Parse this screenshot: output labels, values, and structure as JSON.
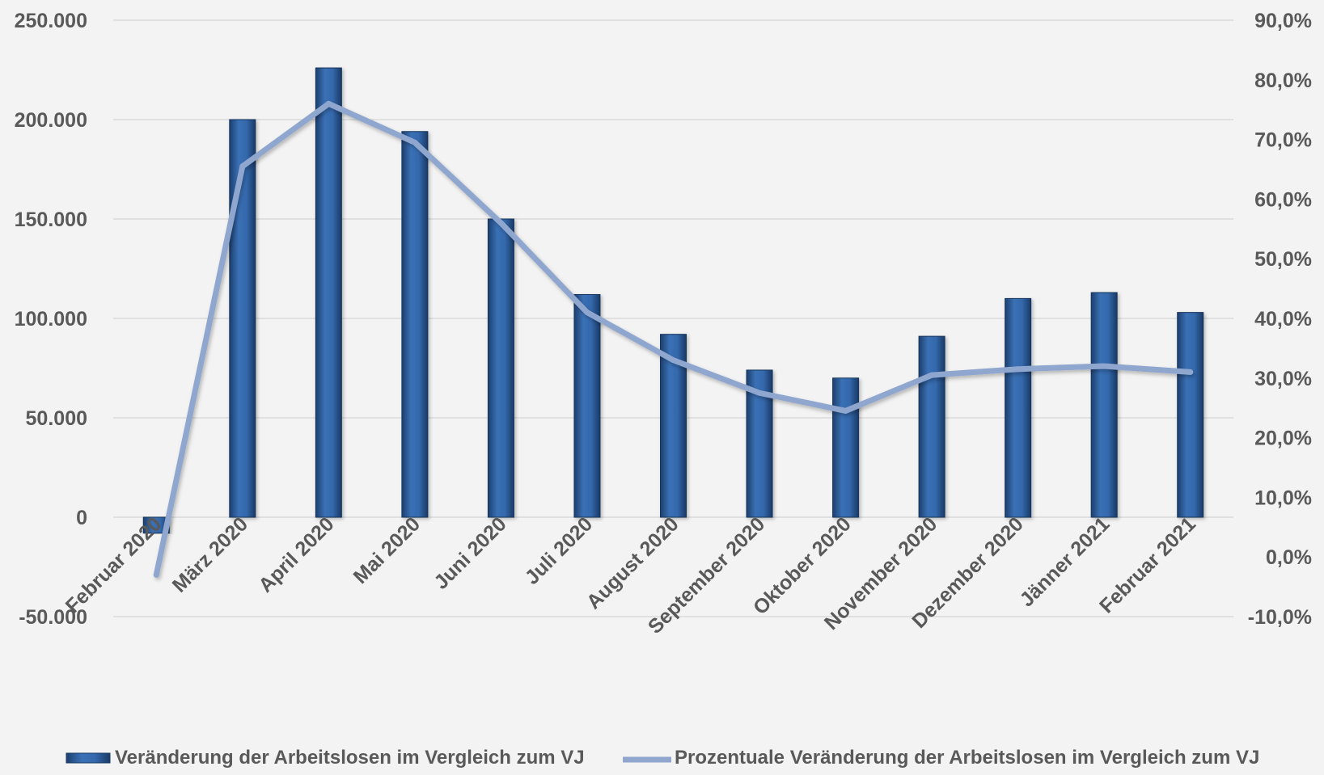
{
  "chart_data": {
    "type": "bar+line",
    "categories": [
      "Februar 2020",
      "März 2020",
      "April 2020",
      "Mai 2020",
      "Juni 2020",
      "Juli 2020",
      "August 2020",
      "September 2020",
      "Oktober 2020",
      "November 2020",
      "Dezember 2020",
      "Jänner 2021",
      "Februar 2021"
    ],
    "series": [
      {
        "name": "Veränderung der Arbeitslosen im Vergleich zum VJ",
        "type": "bar",
        "axis": "left",
        "color": "#2e5f9e",
        "values": [
          -8000,
          200000,
          226000,
          194000,
          150000,
          112000,
          92000,
          74000,
          70000,
          91000,
          110000,
          113000,
          103000
        ]
      },
      {
        "name": "Prozentuale Veränderung der Arbeitslosen im Vergleich zum VJ",
        "type": "line",
        "axis": "right",
        "color": "#8fa6cf",
        "values": [
          -3.0,
          65.5,
          76.0,
          69.5,
          56.0,
          41.0,
          33.0,
          27.5,
          24.5,
          30.5,
          31.5,
          32.0,
          31.0
        ]
      }
    ],
    "y_left": {
      "ylim": [
        -50000,
        250000
      ],
      "ticks": [
        -50000,
        0,
        50000,
        100000,
        150000,
        200000,
        250000
      ],
      "tick_labels": [
        "-50.000",
        "0",
        "50.000",
        "100.000",
        "150.000",
        "200.000",
        "250.000"
      ]
    },
    "y_right": {
      "ylim": [
        -10,
        90
      ],
      "ticks": [
        -10,
        0,
        10,
        20,
        30,
        40,
        50,
        60,
        70,
        80,
        90
      ],
      "tick_labels": [
        "-10,0%",
        "0,0%",
        "10,0%",
        "20,0%",
        "30,0%",
        "40,0%",
        "50,0%",
        "60,0%",
        "70,0%",
        "80,0%",
        "90,0%"
      ]
    },
    "grid": true,
    "legend": "bottom"
  }
}
